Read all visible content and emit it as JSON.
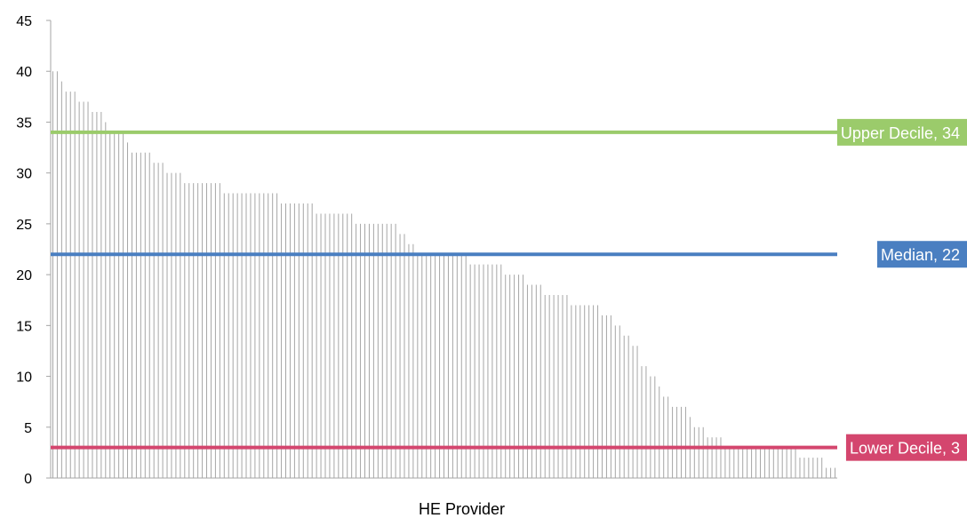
{
  "chart_data": {
    "type": "bar",
    "title": "",
    "xlabel": "HE Provider",
    "ylabel": "",
    "ylim": [
      0,
      45
    ],
    "yticks": [
      0,
      5,
      10,
      15,
      20,
      25,
      30,
      35,
      40,
      45
    ],
    "grid": false,
    "legend": "none",
    "bar_color": "#a6a6a6",
    "values": [
      40,
      40,
      39,
      38,
      38,
      38,
      37,
      37,
      37,
      36,
      36,
      36,
      35,
      34,
      34,
      34,
      34,
      33,
      32,
      32,
      32,
      32,
      32,
      31,
      31,
      31,
      30,
      30,
      30,
      30,
      29,
      29,
      29,
      29,
      29,
      29,
      29,
      29,
      29,
      28,
      28,
      28,
      28,
      28,
      28,
      28,
      28,
      28,
      28,
      28,
      28,
      28,
      27,
      27,
      27,
      27,
      27,
      27,
      27,
      27,
      26,
      26,
      26,
      26,
      26,
      26,
      26,
      26,
      26,
      25,
      25,
      25,
      25,
      25,
      25,
      25,
      25,
      25,
      25,
      24,
      24,
      23,
      23,
      22,
      22,
      22,
      22,
      22,
      22,
      22,
      22,
      22,
      22,
      22,
      22,
      21,
      21,
      21,
      21,
      21,
      21,
      21,
      21,
      20,
      20,
      20,
      20,
      20,
      19,
      19,
      19,
      19,
      18,
      18,
      18,
      18,
      18,
      18,
      17,
      17,
      17,
      17,
      17,
      17,
      17,
      16,
      16,
      16,
      15,
      15,
      14,
      14,
      13,
      13,
      11,
      11,
      10,
      10,
      9,
      8,
      8,
      7,
      7,
      7,
      7,
      6,
      5,
      5,
      5,
      4,
      4,
      4,
      4,
      3,
      3,
      3,
      3,
      3,
      3,
      3,
      3,
      3,
      3,
      3,
      3,
      3,
      3,
      3,
      3,
      3,
      2,
      2,
      2,
      2,
      2,
      2,
      1,
      1,
      1
    ],
    "reference_lines": [
      {
        "name": "Upper Decile",
        "value": 34,
        "label": "Upper Decile, 34",
        "color": "#9bcb6b"
      },
      {
        "name": "Median",
        "value": 22,
        "label": "Median, 22",
        "color": "#4a7fc1"
      },
      {
        "name": "Lower Decile",
        "value": 3,
        "label": "Lower Decile, 3",
        "color": "#d4466e"
      }
    ]
  }
}
